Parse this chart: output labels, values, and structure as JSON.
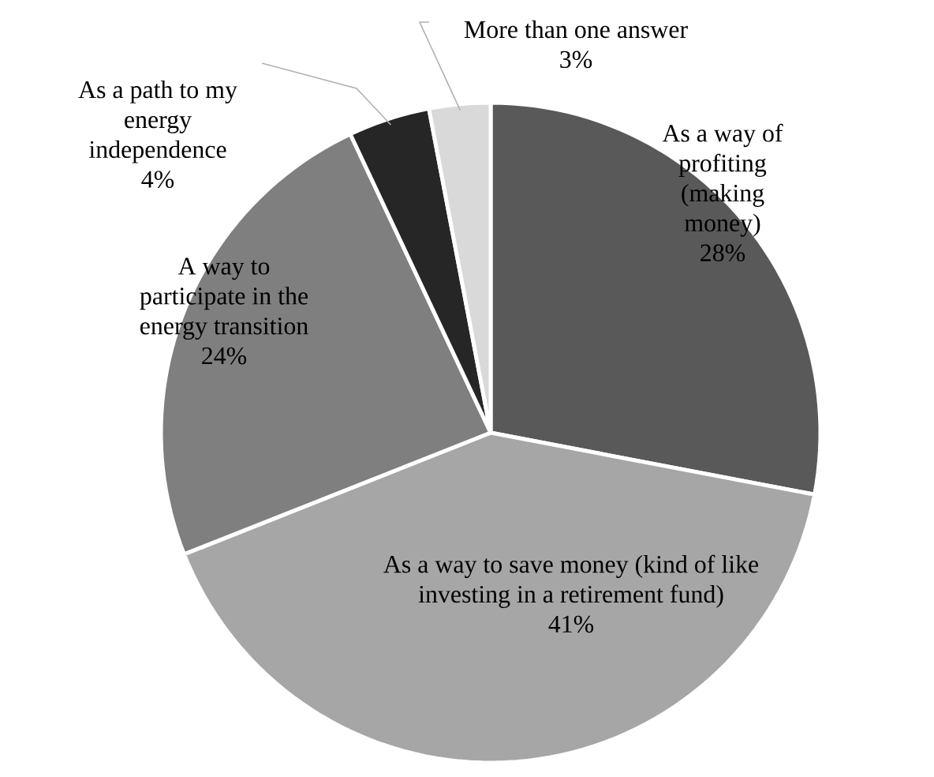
{
  "chart_data": {
    "type": "pie",
    "categories": [
      "As a way of profiting (making money)",
      "As a way to save money (kind of like investing in a retirement fund)",
      "A way to participate in the energy transition",
      "As a path to my energy independence",
      "More than one answer"
    ],
    "values": [
      28,
      41,
      24,
      4,
      3
    ],
    "value_labels": [
      "28%",
      "41%",
      "24%",
      "4%",
      "3%"
    ],
    "colors": [
      "#595959",
      "#a6a6a6",
      "#7f7f7f",
      "#262626",
      "#d9d9d9"
    ]
  }
}
